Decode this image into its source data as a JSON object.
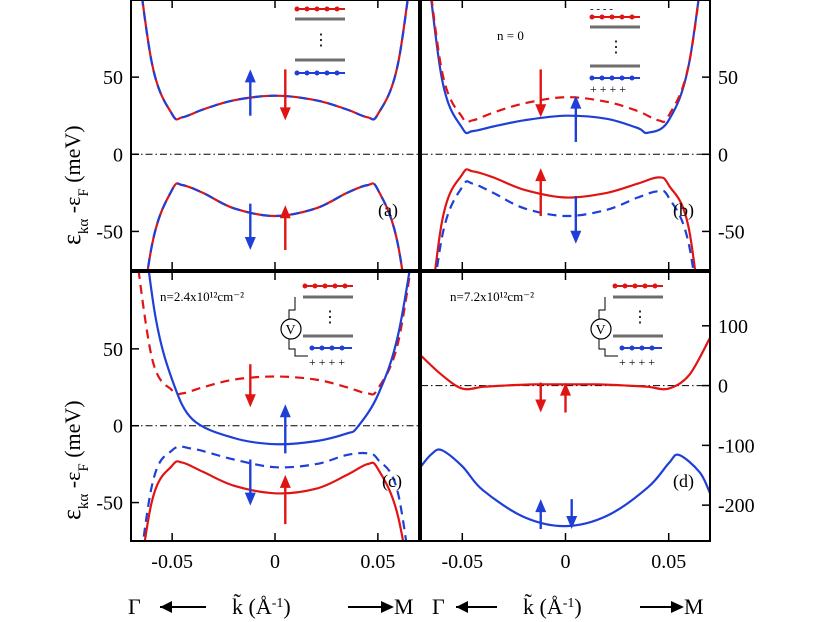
{
  "chart_data": [
    {
      "type": "line",
      "panel_label": "(a)",
      "annotation": "",
      "xlim": [
        -0.07,
        0.07
      ],
      "ylim": [
        -75,
        100
      ],
      "yticks": [
        {
          "value": 50,
          "label": "50"
        },
        {
          "value": 0,
          "label": "0"
        },
        {
          "value": -50,
          "label": "-50"
        }
      ],
      "series": [
        {
          "name": "conduction band (spin up)",
          "color": "#e11414",
          "dash": false,
          "x": [
            -0.07,
            -0.06,
            -0.05,
            -0.045,
            -0.035,
            -0.02,
            0,
            0.02,
            0.035,
            0.045,
            0.05,
            0.06,
            0.07
          ],
          "y": [
            160,
            60,
            26,
            24,
            29,
            35,
            38,
            35,
            29,
            24,
            26,
            60,
            160
          ]
        },
        {
          "name": "conduction band (spin down)",
          "color": "#1f3fd6",
          "dash": true,
          "x": [
            -0.07,
            -0.06,
            -0.05,
            -0.045,
            -0.035,
            -0.02,
            0,
            0.02,
            0.035,
            0.045,
            0.05,
            0.06,
            0.07
          ],
          "y": [
            160,
            60,
            26,
            24,
            29,
            35,
            38,
            35,
            29,
            24,
            26,
            60,
            160
          ]
        },
        {
          "name": "valence band (spin up)",
          "color": "#e11414",
          "dash": false,
          "x": [
            -0.07,
            -0.06,
            -0.05,
            -0.045,
            -0.035,
            -0.02,
            0,
            0.02,
            0.035,
            0.045,
            0.05,
            0.06,
            0.07
          ],
          "y": [
            -160,
            -60,
            -23,
            -20,
            -25,
            -35,
            -40,
            -35,
            -25,
            -20,
            -23,
            -60,
            -160
          ]
        },
        {
          "name": "valence band (spin down)",
          "color": "#1f3fd6",
          "dash": true,
          "x": [
            -0.07,
            -0.06,
            -0.05,
            -0.045,
            -0.035,
            -0.02,
            0,
            0.02,
            0.035,
            0.045,
            0.05,
            0.06,
            0.07
          ],
          "y": [
            -160,
            -60,
            -23,
            -20,
            -25,
            -35,
            -40,
            -35,
            -25,
            -20,
            -23,
            -60,
            -160
          ]
        }
      ],
      "arrows": [
        {
          "x": -0.012,
          "y_from": 25,
          "y_to": 55,
          "color": "#1f3fd6"
        },
        {
          "x": 0.005,
          "y_from": 55,
          "y_to": 22,
          "color": "#e11414"
        },
        {
          "x": -0.012,
          "y_from": -32,
          "y_to": -62,
          "color": "#1f3fd6"
        },
        {
          "x": 0.005,
          "y_from": -62,
          "y_to": -33,
          "color": "#e11414"
        }
      ]
    },
    {
      "type": "line",
      "panel_label": "(b)",
      "annotation": "n = 0",
      "xlim": [
        -0.07,
        0.07
      ],
      "ylim": [
        -75,
        100
      ],
      "yticks": [
        {
          "value": 50,
          "label": "50"
        },
        {
          "value": 0,
          "label": "0"
        },
        {
          "value": -50,
          "label": "-50"
        }
      ],
      "series": [
        {
          "name": "conduction (blue)",
          "color": "#1f3fd6",
          "dash": false,
          "x": [
            -0.07,
            -0.06,
            -0.05,
            -0.045,
            -0.035,
            -0.02,
            0,
            0.02,
            0.035,
            0.04,
            0.05,
            0.06,
            0.07
          ],
          "y": [
            160,
            50,
            17,
            15,
            18,
            22,
            25,
            23,
            17,
            14,
            22,
            60,
            160
          ]
        },
        {
          "name": "conduction (red dashed)",
          "color": "#e11414",
          "dash": true,
          "x": [
            -0.07,
            -0.06,
            -0.05,
            -0.045,
            -0.035,
            -0.02,
            0,
            0.02,
            0.035,
            0.045,
            0.05,
            0.06,
            0.07
          ],
          "y": [
            160,
            55,
            24,
            22,
            27,
            33,
            37,
            34,
            28,
            22,
            25,
            60,
            160
          ]
        },
        {
          "name": "valence (red)",
          "color": "#e11414",
          "dash": false,
          "x": [
            -0.07,
            -0.06,
            -0.05,
            -0.045,
            -0.035,
            -0.02,
            0,
            0.02,
            0.035,
            0.045,
            0.05,
            0.06,
            0.07
          ],
          "y": [
            -160,
            -45,
            -13,
            -11,
            -15,
            -23,
            -28,
            -25,
            -19,
            -15,
            -20,
            -50,
            -160
          ]
        },
        {
          "name": "valence (blue dashed)",
          "color": "#1f3fd6",
          "dash": true,
          "x": [
            -0.07,
            -0.06,
            -0.05,
            -0.045,
            -0.035,
            -0.02,
            0,
            0.02,
            0.035,
            0.045,
            0.05,
            0.06,
            0.07
          ],
          "y": [
            -160,
            -55,
            -21,
            -19,
            -25,
            -35,
            -40,
            -36,
            -28,
            -24,
            -28,
            -60,
            -160
          ]
        }
      ],
      "arrows": [
        {
          "x": -0.012,
          "y_from": 55,
          "y_to": 24,
          "color": "#e11414"
        },
        {
          "x": 0.005,
          "y_from": 8,
          "y_to": 38,
          "color": "#1f3fd6"
        },
        {
          "x": -0.012,
          "y_from": -40,
          "y_to": -9,
          "color": "#e11414"
        },
        {
          "x": 0.005,
          "y_from": -27,
          "y_to": -58,
          "color": "#1f3fd6"
        }
      ]
    },
    {
      "type": "line",
      "panel_label": "(c)",
      "annotation": "n=2.4x10¹²cm⁻²",
      "xlim": [
        -0.07,
        0.07
      ],
      "ylim": [
        -75,
        100
      ],
      "yticks": [
        {
          "value": 50,
          "label": "50"
        },
        {
          "value": 0,
          "label": "0"
        },
        {
          "value": -50,
          "label": "-50"
        }
      ],
      "series": [
        {
          "name": "conduction (red dashed)",
          "color": "#e11414",
          "dash": true,
          "x": [
            -0.07,
            -0.06,
            -0.05,
            -0.045,
            -0.035,
            -0.02,
            0,
            0.02,
            0.035,
            0.045,
            0.05,
            0.06,
            0.07
          ],
          "y": [
            140,
            45,
            23,
            21,
            25,
            30,
            32,
            30,
            25,
            21,
            24,
            55,
            140
          ]
        },
        {
          "name": "conduction (blue)",
          "color": "#1f3fd6",
          "dash": false,
          "x": [
            -0.065,
            -0.058,
            -0.05,
            -0.04,
            -0.02,
            0,
            0.02,
            0.035,
            0.04,
            0.05,
            0.06,
            0.07
          ],
          "y": [
            140,
            70,
            30,
            4,
            -8,
            -12,
            -10,
            -5,
            -1,
            20,
            60,
            140
          ]
        },
        {
          "name": "valence (blue dashed)",
          "color": "#1f3fd6",
          "dash": true,
          "x": [
            -0.07,
            -0.06,
            -0.05,
            -0.04,
            -0.02,
            0,
            0.02,
            0.035,
            0.045,
            0.05,
            0.06,
            0.07
          ],
          "y": [
            -140,
            -40,
            -16,
            -15,
            -22,
            -27,
            -25,
            -19,
            -18,
            -22,
            -45,
            -140
          ]
        },
        {
          "name": "valence (red)",
          "color": "#e11414",
          "dash": false,
          "x": [
            -0.07,
            -0.06,
            -0.05,
            -0.045,
            -0.035,
            -0.02,
            0,
            0.02,
            0.035,
            0.045,
            0.05,
            0.06,
            0.07
          ],
          "y": [
            -140,
            -50,
            -26,
            -24,
            -30,
            -39,
            -44,
            -41,
            -32,
            -25,
            -28,
            -60,
            -140
          ]
        }
      ],
      "arrows": [
        {
          "x": -0.012,
          "y_from": 40,
          "y_to": 12,
          "color": "#e11414"
        },
        {
          "x": 0.005,
          "y_from": -18,
          "y_to": 14,
          "color": "#1f3fd6"
        },
        {
          "x": -0.012,
          "y_from": -22,
          "y_to": -52,
          "color": "#1f3fd6"
        },
        {
          "x": 0.005,
          "y_from": -64,
          "y_to": -32,
          "color": "#e11414"
        }
      ]
    },
    {
      "type": "line",
      "panel_label": "(d)",
      "annotation": "n=7.2x10¹²cm⁻²",
      "xlim": [
        -0.07,
        0.07
      ],
      "ylim": [
        -260,
        190
      ],
      "yticks": [
        {
          "value": 100,
          "label": "100"
        },
        {
          "value": 0,
          "label": "0"
        },
        {
          "value": -100,
          "label": "-100"
        },
        {
          "value": -200,
          "label": "-200"
        }
      ],
      "series": [
        {
          "name": "conduction (red)",
          "color": "#e11414",
          "dash": false,
          "x": [
            -0.07,
            -0.06,
            -0.05,
            -0.04,
            -0.03,
            -0.015,
            0,
            0.015,
            0.03,
            0.04,
            0.05,
            0.06,
            0.07
          ],
          "y": [
            50,
            18,
            -5,
            -2,
            0,
            2,
            2,
            2,
            0,
            -2,
            -5,
            18,
            80
          ]
        },
        {
          "name": "valence (blue)",
          "color": "#1f3fd6",
          "dash": false,
          "x": [
            -0.07,
            -0.065,
            -0.06,
            -0.05,
            -0.04,
            -0.02,
            0,
            0.02,
            0.04,
            0.05,
            0.055,
            0.065,
            0.07
          ],
          "y": [
            -135,
            -115,
            -108,
            -135,
            -175,
            -220,
            -235,
            -218,
            -170,
            -130,
            -116,
            -145,
            -180
          ]
        }
      ],
      "arrows": [
        {
          "x": -0.012,
          "y_from": 5,
          "y_to": -45,
          "color": "#e11414"
        },
        {
          "x": 0.0,
          "y_from": -45,
          "y_to": 5,
          "color": "#e11414"
        },
        {
          "x": -0.012,
          "y_from": -240,
          "y_to": -190,
          "color": "#1f3fd6"
        },
        {
          "x": 0.003,
          "y_from": -190,
          "y_to": -240,
          "color": "#1f3fd6"
        }
      ]
    }
  ],
  "xaxis": {
    "ticks": [
      {
        "value": -0.05,
        "label": "-0.05"
      },
      {
        "value": 0,
        "label": "0"
      },
      {
        "value": 0.05,
        "label": "0.05"
      }
    ],
    "left_symbol": "Γ",
    "right_symbol": "M",
    "label_k": "k̃ (Å",
    "label_exp": "-1",
    "label_close": ")"
  },
  "yaxis": {
    "eps": "ε",
    "sub_ka": "kα",
    "dash": " -ε",
    "sub_f": "F",
    "unit": " (meV)"
  },
  "insets": {
    "signs_top": "-  -  -  -",
    "signs_bottom": "+ + + +",
    "voltage": "V",
    "dots": "⋮"
  },
  "colors": {
    "red": "#e11414",
    "blue": "#1f3fd6",
    "gray": "#6e6e6e"
  }
}
